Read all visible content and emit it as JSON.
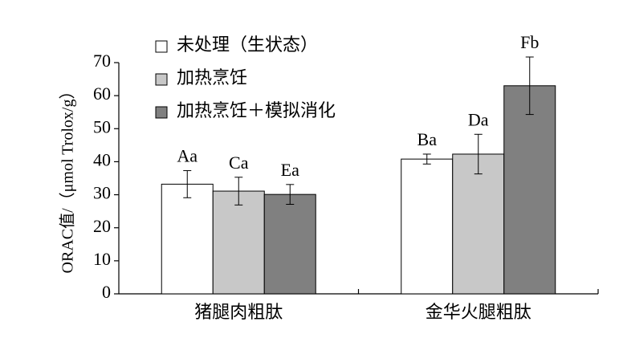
{
  "chart_data": {
    "type": "bar",
    "y_label": "ORAC值/（μmol Trolox/g）",
    "categories": [
      "猪腿肉粗肽",
      "金华火腿粗肽"
    ],
    "series": [
      {
        "name": "未处理（生状态）",
        "color": "#ffffff",
        "values": [
          33.2,
          40.8
        ],
        "errors": [
          4.1,
          1.5
        ],
        "labels": [
          "Aa",
          "Ba"
        ]
      },
      {
        "name": "加热烹饪",
        "color": "#c8c8c8",
        "values": [
          31.1,
          42.3
        ],
        "errors": [
          4.2,
          6.0
        ],
        "labels": [
          "Ca",
          "Da"
        ]
      },
      {
        "name": "加热烹饪＋模拟消化",
        "color": "#808080",
        "values": [
          30.1,
          63.0
        ],
        "errors": [
          3.0,
          8.7
        ],
        "labels": [
          "Ea",
          "Fb"
        ]
      }
    ],
    "ylim": [
      0,
      70
    ],
    "yticks": [
      0,
      10,
      20,
      30,
      40,
      50,
      60,
      70
    ],
    "legend": "upper left"
  }
}
